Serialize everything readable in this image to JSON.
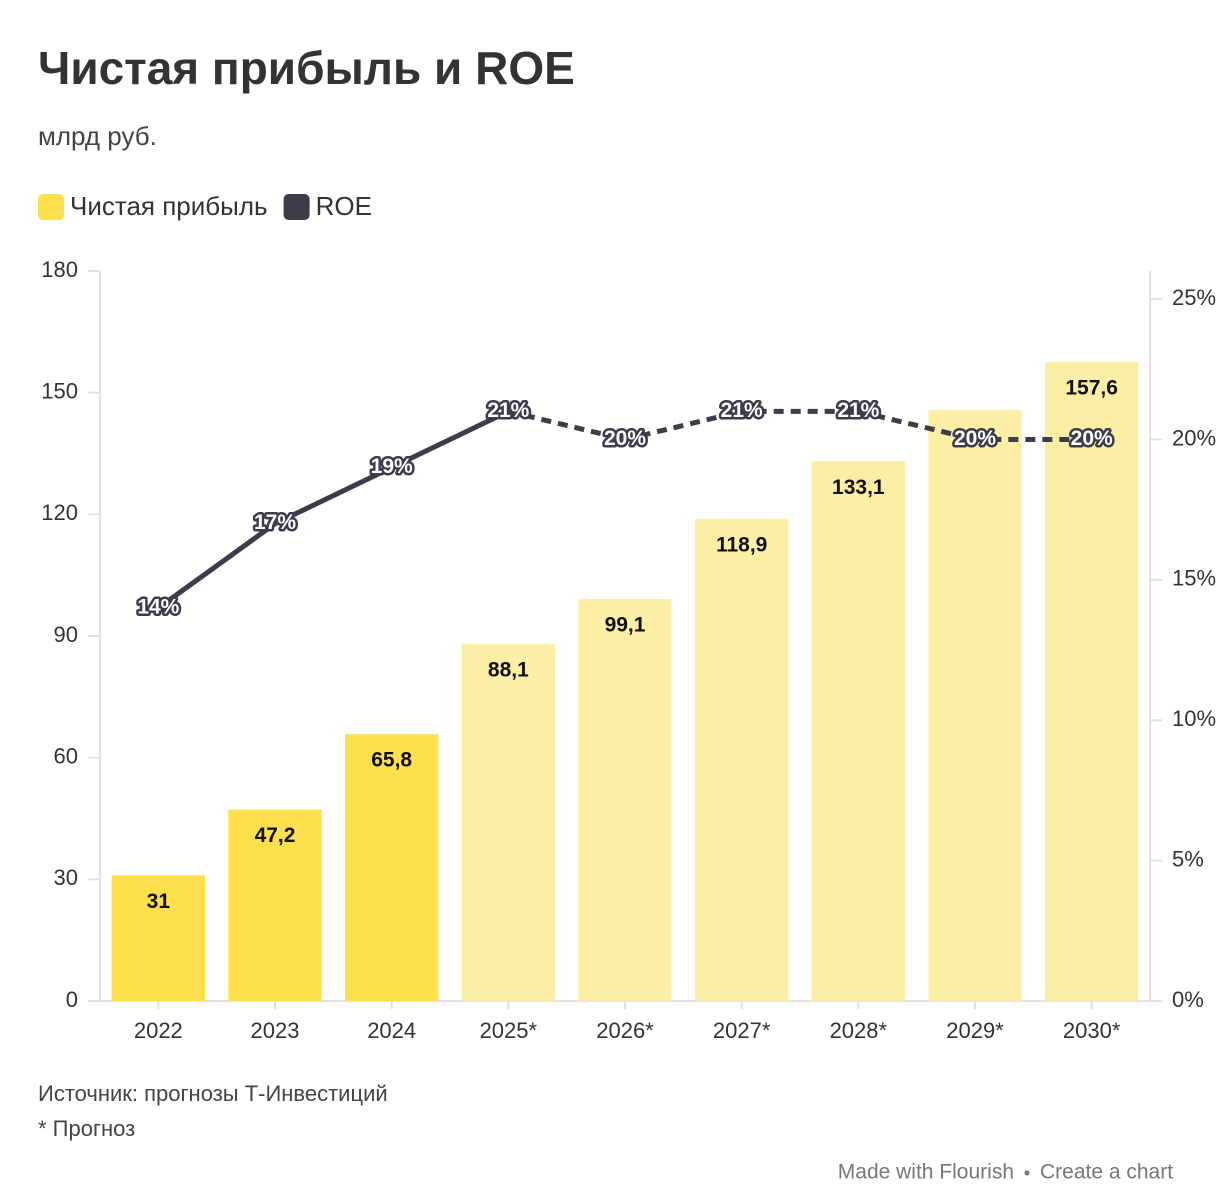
{
  "chart_data": {
    "type": "bar",
    "title": "Чистая прибыль и ROE",
    "subtitle": "млрд руб.",
    "categories": [
      "2022",
      "2023",
      "2024",
      "2025*",
      "2026*",
      "2027*",
      "2028*",
      "2029*",
      "2030*"
    ],
    "series": [
      {
        "name": "Чистая прибыль",
        "type": "bar",
        "color": "#fde04b",
        "colors": [
          "#fde04b",
          "#fde04b",
          "#fde04b",
          "#fdeea6",
          "#fdeea6",
          "#fdeea6",
          "#fdeea6",
          "#fdeea6",
          "#fdeea6"
        ],
        "values": [
          31,
          47.2,
          65.8,
          88.1,
          99.1,
          118.9,
          133.1,
          145.7,
          157.6
        ],
        "value_labels": [
          "31",
          "47,2",
          "65,8",
          "88,1",
          "99,1",
          "118,9",
          "133,1",
          null,
          "157,6"
        ]
      },
      {
        "name": "ROE",
        "type": "line",
        "axis": "y2",
        "color": "#3d3c4a",
        "dashed_from_index": 3,
        "values": [
          14,
          17,
          19,
          21,
          20,
          21,
          21,
          20,
          20
        ],
        "value_labels": [
          "14%",
          "17%",
          "19%",
          "21%",
          "20%",
          "21%",
          "21%",
          "20%",
          "20%"
        ]
      }
    ],
    "ylim": [
      0,
      180
    ],
    "yticks": [
      0,
      30,
      60,
      90,
      120,
      150,
      180
    ],
    "y2lim": [
      0,
      26
    ],
    "y2ticks": [
      {
        "value": 0,
        "label": "0%"
      },
      {
        "value": 5,
        "label": "5%"
      },
      {
        "value": 10,
        "label": "10%"
      },
      {
        "value": 15,
        "label": "15%"
      },
      {
        "value": 20,
        "label": "20%"
      },
      {
        "value": 25,
        "label": "25%"
      }
    ],
    "grid": false,
    "legend": "top-left",
    "source": "Источник: прогнозы Т-Инвестиций",
    "note": "* Прогноз",
    "credit": [
      "Made with Flourish",
      "Create a chart"
    ]
  }
}
